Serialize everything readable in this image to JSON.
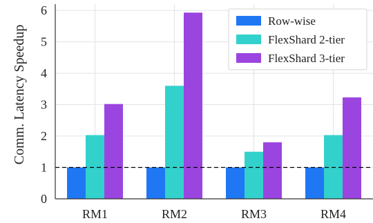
{
  "chart_data": {
    "type": "bar",
    "categories": [
      "RM1",
      "RM2",
      "RM3",
      "RM4"
    ],
    "series": [
      {
        "name": "Row-wise",
        "values": [
          1.0,
          1.0,
          1.0,
          1.0
        ],
        "color": "#1f77f4"
      },
      {
        "name": "FlexShard 2-tier",
        "values": [
          2.03,
          3.6,
          1.5,
          2.03
        ],
        "color": "#33d1cc"
      },
      {
        "name": "FlexShard 3-tier",
        "values": [
          3.02,
          5.93,
          1.8,
          3.23
        ],
        "color": "#9b45e0"
      }
    ],
    "title": "",
    "xlabel": "",
    "ylabel": "Comm. Latency Speedup",
    "ylim": [
      0,
      6.2
    ],
    "yticks": [
      0,
      1,
      2,
      3,
      4,
      5,
      6
    ],
    "reference_line": {
      "y": 1,
      "style": "dashed",
      "color": "#000000"
    },
    "grid": true,
    "legend_position": "top-right"
  }
}
